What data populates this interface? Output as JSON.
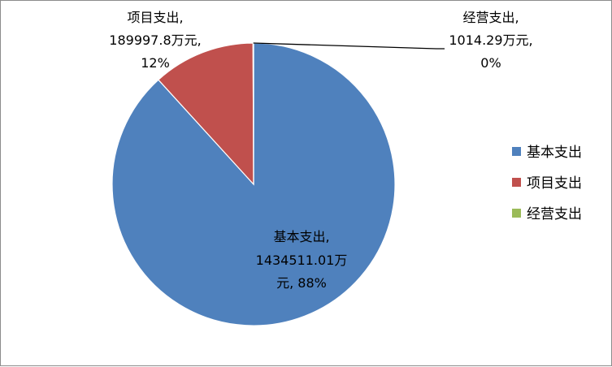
{
  "chart_data": {
    "type": "pie",
    "title": "",
    "unit": "万元",
    "legend_position": "right",
    "slices": [
      {
        "name": "基本支出",
        "value": 1434511.01,
        "percent": "88%",
        "color": "#4f81bd",
        "label_lines": [
          "基本支出,",
          "1434511.01万",
          "元, 88%"
        ]
      },
      {
        "name": "项目支出",
        "value": 189997.8,
        "percent": "12%",
        "color": "#c0504d",
        "label_lines": [
          "项目支出,",
          "189997.8万元,",
          "12%"
        ]
      },
      {
        "name": "经营支出",
        "value": 1014.29,
        "percent": "0%",
        "color": "#9bbb59",
        "label_lines": [
          "经营支出,",
          "1014.29万元,",
          "0%"
        ]
      }
    ]
  }
}
